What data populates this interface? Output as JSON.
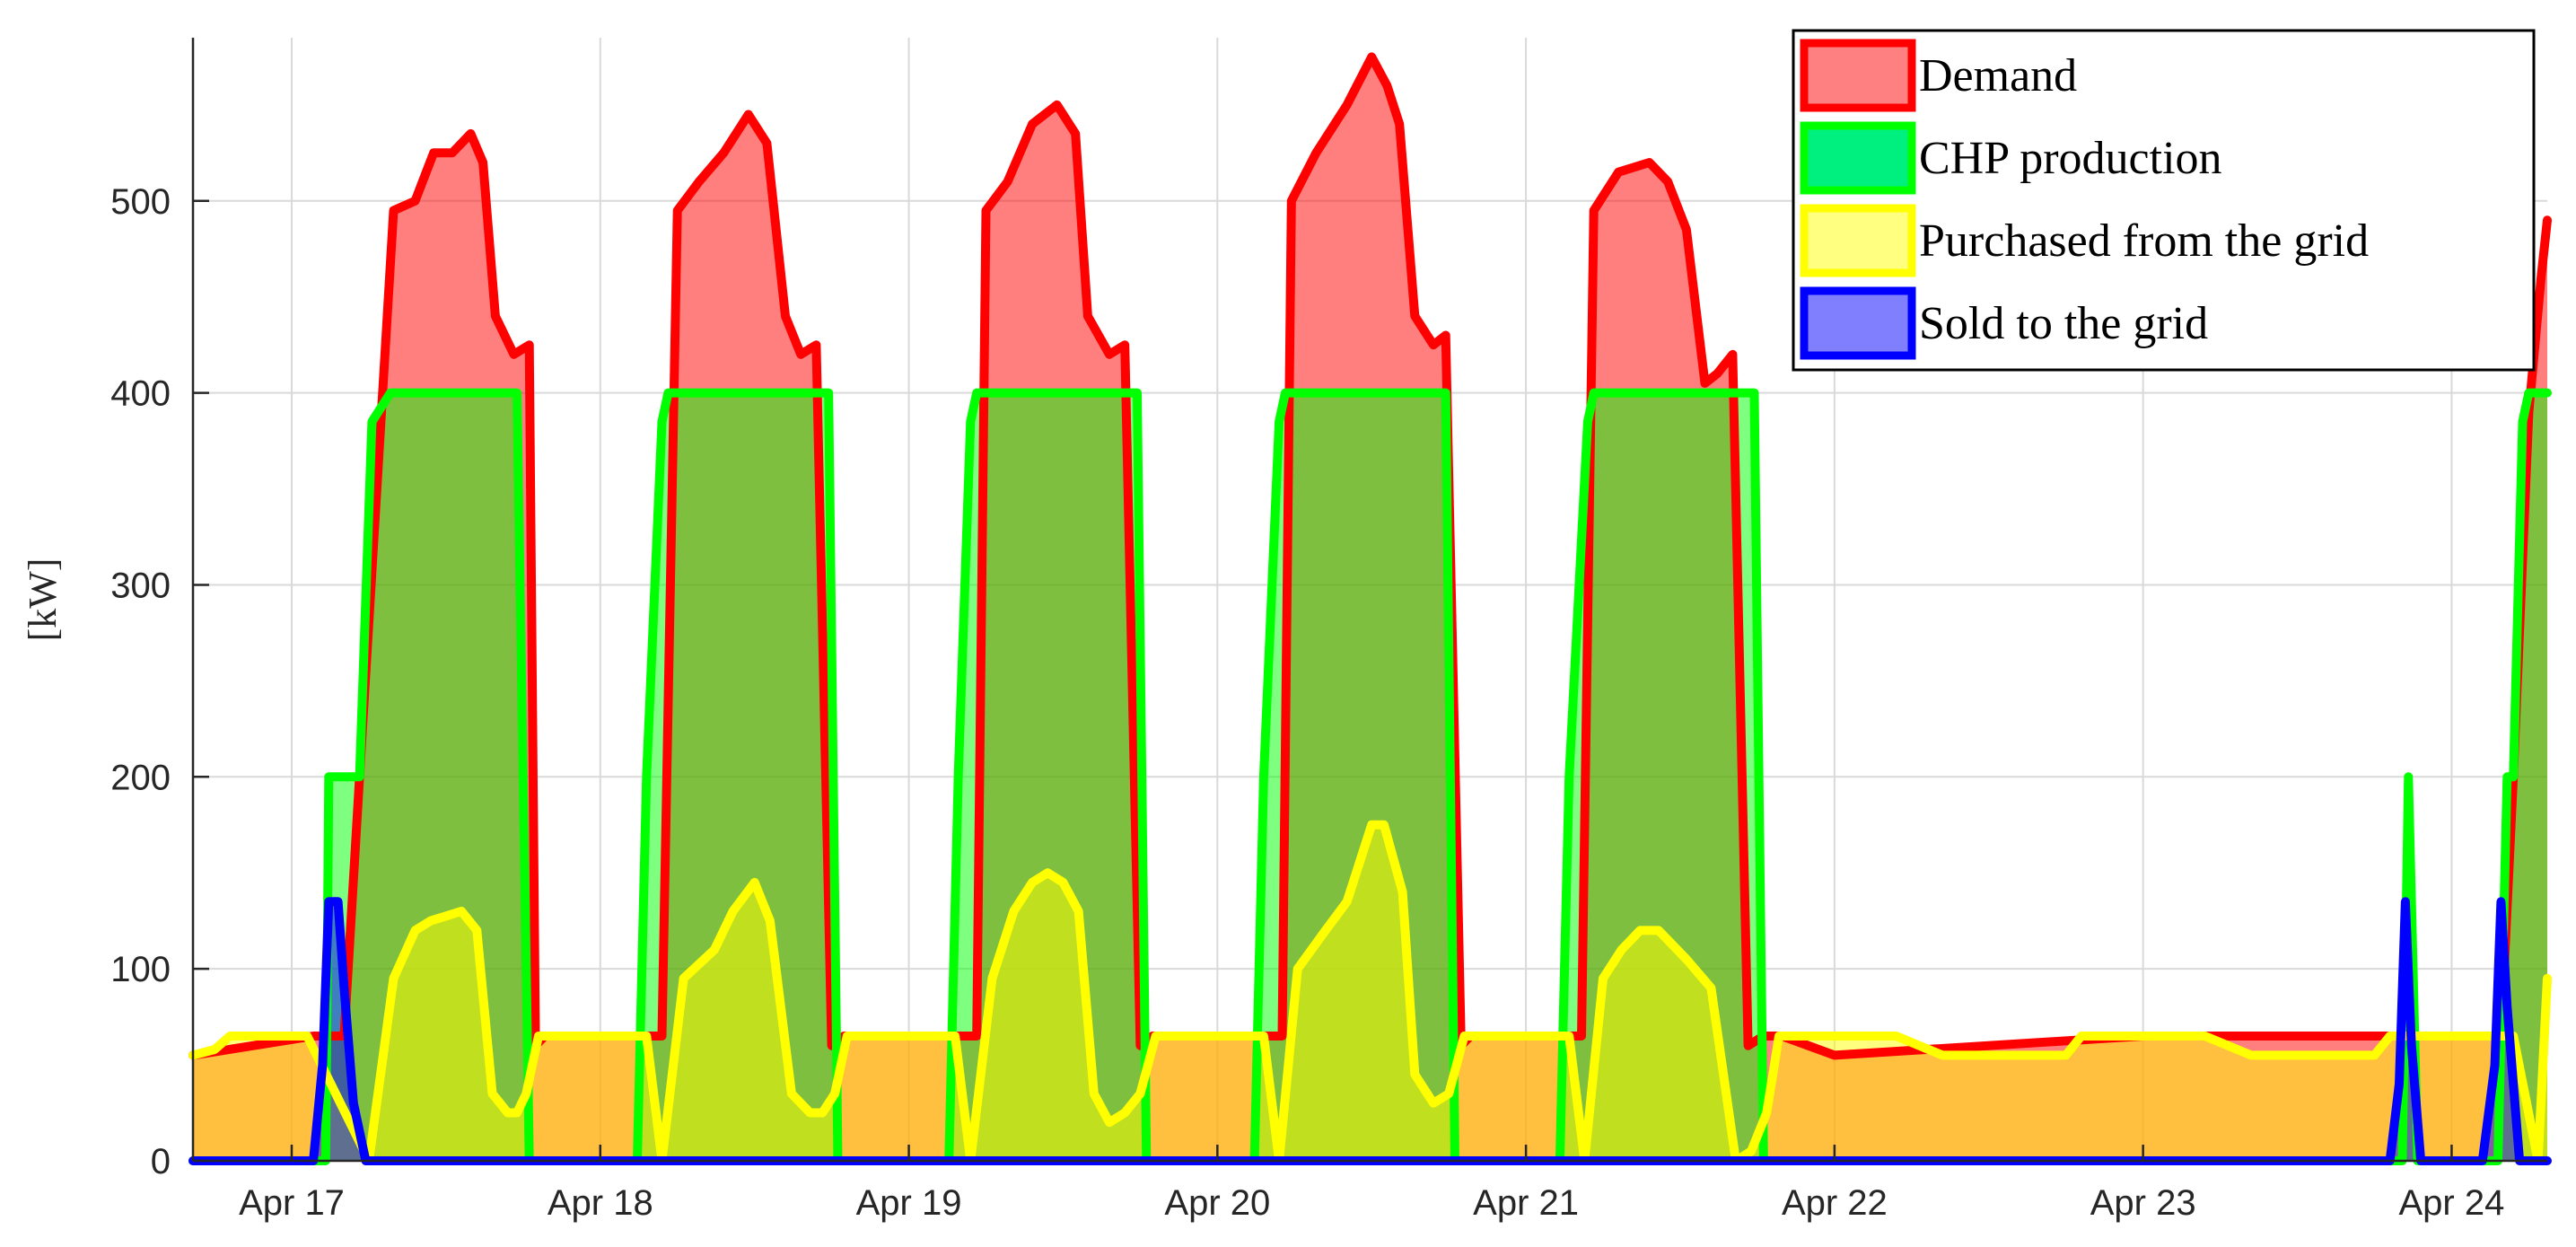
{
  "chart_data": {
    "type": "area",
    "title": "",
    "xlabel": "",
    "ylabel": "[kW]",
    "x_ticks": [
      "Apr 17",
      "Apr 18",
      "Apr 19",
      "Apr 20",
      "Apr 21",
      "Apr 22",
      "Apr 23",
      "Apr 24"
    ],
    "x_range_days": [
      16.68,
      24.31
    ],
    "y_ticks": [
      0,
      100,
      200,
      300,
      400,
      500
    ],
    "ylim": [
      0,
      585
    ],
    "grid": true,
    "legend_position": "top-right",
    "legend_entries": [
      {
        "label": "Demand",
        "fill": "#ff8080",
        "edge": "#ff0000"
      },
      {
        "label": "CHP production",
        "fill": "#00f080",
        "edge": "#00ff00"
      },
      {
        "label": "Purchased from the grid",
        "fill": "#ffff80",
        "edge": "#ffff00"
      },
      {
        "label": "Sold to the grid",
        "fill": "#8080ff",
        "edge": "#0000ff"
      }
    ],
    "x_unit": "day of April",
    "series": [
      {
        "name": "Demand",
        "color": "#ff0000",
        "fill": "#ff8080",
        "x": [
          16.68,
          17.07,
          17.17,
          17.22,
          17.33,
          17.4,
          17.46,
          17.52,
          17.58,
          17.62,
          17.66,
          17.72,
          17.77,
          17.79,
          17.82,
          17.85,
          18.0,
          18.2,
          18.25,
          18.32,
          18.4,
          18.48,
          18.54,
          18.6,
          18.65,
          18.7,
          18.75,
          18.79,
          18.82,
          18.86,
          19.0,
          19.22,
          19.25,
          19.32,
          19.4,
          19.48,
          19.54,
          19.58,
          19.65,
          19.7,
          19.75,
          19.79,
          19.82,
          19.86,
          20.0,
          20.21,
          20.24,
          20.32,
          20.42,
          20.5,
          20.55,
          20.59,
          20.64,
          20.7,
          20.74,
          20.79,
          20.82,
          20.86,
          21.0,
          21.18,
          21.22,
          21.3,
          21.4,
          21.46,
          21.52,
          21.58,
          21.62,
          21.67,
          21.72,
          21.77,
          21.8,
          21.83,
          22.0,
          23.0,
          23.85,
          24.0,
          24.16,
          24.2,
          24.25,
          24.29,
          24.31
        ],
        "values": [
          55,
          65,
          65,
          200,
          495,
          500,
          525,
          525,
          535,
          520,
          440,
          420,
          425,
          60,
          65,
          65,
          65,
          65,
          495,
          510,
          525,
          545,
          530,
          440,
          420,
          425,
          60,
          65,
          65,
          65,
          65,
          65,
          495,
          510,
          540,
          550,
          535,
          440,
          420,
          425,
          60,
          65,
          65,
          65,
          65,
          65,
          500,
          525,
          550,
          575,
          560,
          540,
          440,
          425,
          430,
          60,
          65,
          65,
          65,
          65,
          495,
          515,
          520,
          510,
          485,
          405,
          410,
          420,
          60,
          65,
          65,
          65,
          55,
          65,
          65,
          65,
          65,
          200,
          390,
          460,
          490
        ]
      },
      {
        "name": "CHP production",
        "color": "#00ff00",
        "fill": "#00f080",
        "x": [
          16.68,
          17.1,
          17.11,
          17.12,
          17.22,
          17.26,
          17.32,
          17.34,
          17.36,
          17.73,
          17.77,
          17.79,
          18.1,
          18.12,
          18.15,
          18.2,
          18.22,
          18.25,
          18.28,
          18.74,
          18.77,
          18.79,
          19.11,
          19.13,
          19.16,
          19.2,
          19.22,
          19.25,
          19.28,
          19.74,
          19.77,
          19.79,
          20.1,
          20.12,
          20.15,
          20.2,
          20.22,
          20.25,
          20.28,
          20.74,
          20.77,
          20.79,
          21.09,
          21.11,
          21.14,
          21.2,
          21.22,
          21.25,
          21.28,
          21.74,
          21.77,
          21.79,
          23.82,
          23.84,
          23.86,
          23.89,
          23.91,
          24.13,
          24.15,
          24.18,
          24.2,
          24.23,
          24.25,
          24.28,
          24.31
        ],
        "values": [
          0,
          0,
          0,
          200,
          200,
          385,
          400,
          400,
          400,
          400,
          0,
          0,
          0,
          0,
          200,
          385,
          400,
          400,
          400,
          400,
          0,
          0,
          0,
          0,
          200,
          385,
          400,
          400,
          400,
          400,
          0,
          0,
          0,
          0,
          200,
          385,
          400,
          400,
          400,
          400,
          0,
          0,
          0,
          0,
          200,
          385,
          400,
          400,
          400,
          400,
          0,
          0,
          0,
          0,
          200,
          0,
          0,
          0,
          0,
          200,
          200,
          385,
          400,
          400,
          400
        ]
      },
      {
        "name": "Purchased from the grid",
        "color": "#ffff00",
        "fill": "#ffff80",
        "x": [
          16.68,
          16.75,
          16.8,
          17.05,
          17.25,
          17.33,
          17.4,
          17.45,
          17.55,
          17.6,
          17.65,
          17.7,
          17.73,
          17.76,
          17.8,
          18.0,
          18.15,
          18.2,
          18.27,
          18.37,
          18.43,
          18.5,
          18.55,
          18.62,
          18.68,
          18.72,
          18.76,
          18.8,
          19.0,
          19.15,
          19.2,
          19.27,
          19.34,
          19.4,
          19.45,
          19.5,
          19.55,
          19.6,
          19.65,
          19.7,
          19.75,
          19.8,
          20.0,
          20.15,
          20.2,
          20.26,
          20.35,
          20.42,
          20.5,
          20.54,
          20.6,
          20.64,
          20.7,
          20.75,
          20.8,
          21.0,
          21.14,
          21.19,
          21.25,
          21.31,
          21.37,
          21.43,
          21.52,
          21.6,
          21.68,
          21.73,
          21.78,
          21.82,
          21.87,
          22.0,
          22.15,
          22.2,
          22.35,
          22.5,
          22.65,
          22.75,
          22.8,
          23.0,
          23.15,
          23.2,
          23.35,
          23.5,
          23.7,
          23.75,
          23.8,
          24.0,
          24.1,
          24.15,
          24.2,
          24.28,
          24.31
        ],
        "values": [
          55,
          58,
          65,
          65,
          0,
          95,
          120,
          125,
          130,
          120,
          35,
          25,
          25,
          35,
          65,
          65,
          65,
          0,
          95,
          110,
          130,
          145,
          125,
          35,
          25,
          25,
          35,
          65,
          65,
          65,
          0,
          95,
          130,
          145,
          150,
          145,
          130,
          35,
          20,
          25,
          35,
          65,
          65,
          65,
          0,
          100,
          120,
          135,
          175,
          175,
          140,
          45,
          30,
          35,
          65,
          65,
          65,
          0,
          95,
          110,
          120,
          120,
          105,
          90,
          0,
          5,
          25,
          65,
          65,
          65,
          65,
          65,
          55,
          55,
          55,
          55,
          65,
          65,
          65,
          65,
          55,
          55,
          55,
          55,
          65,
          65,
          65,
          65,
          65,
          0,
          95
        ]
      },
      {
        "name": "Sold to the grid",
        "color": "#0000ff",
        "fill": "#8080ff",
        "x": [
          16.68,
          17.07,
          17.1,
          17.12,
          17.15,
          17.17,
          17.2,
          17.24,
          23.8,
          23.83,
          23.85,
          23.87,
          23.9,
          24.1,
          24.14,
          24.16,
          24.18,
          24.22,
          24.31
        ],
        "values": [
          0,
          0,
          50,
          135,
          135,
          90,
          30,
          0,
          0,
          40,
          135,
          60,
          0,
          0,
          50,
          135,
          80,
          0,
          0
        ]
      }
    ]
  }
}
